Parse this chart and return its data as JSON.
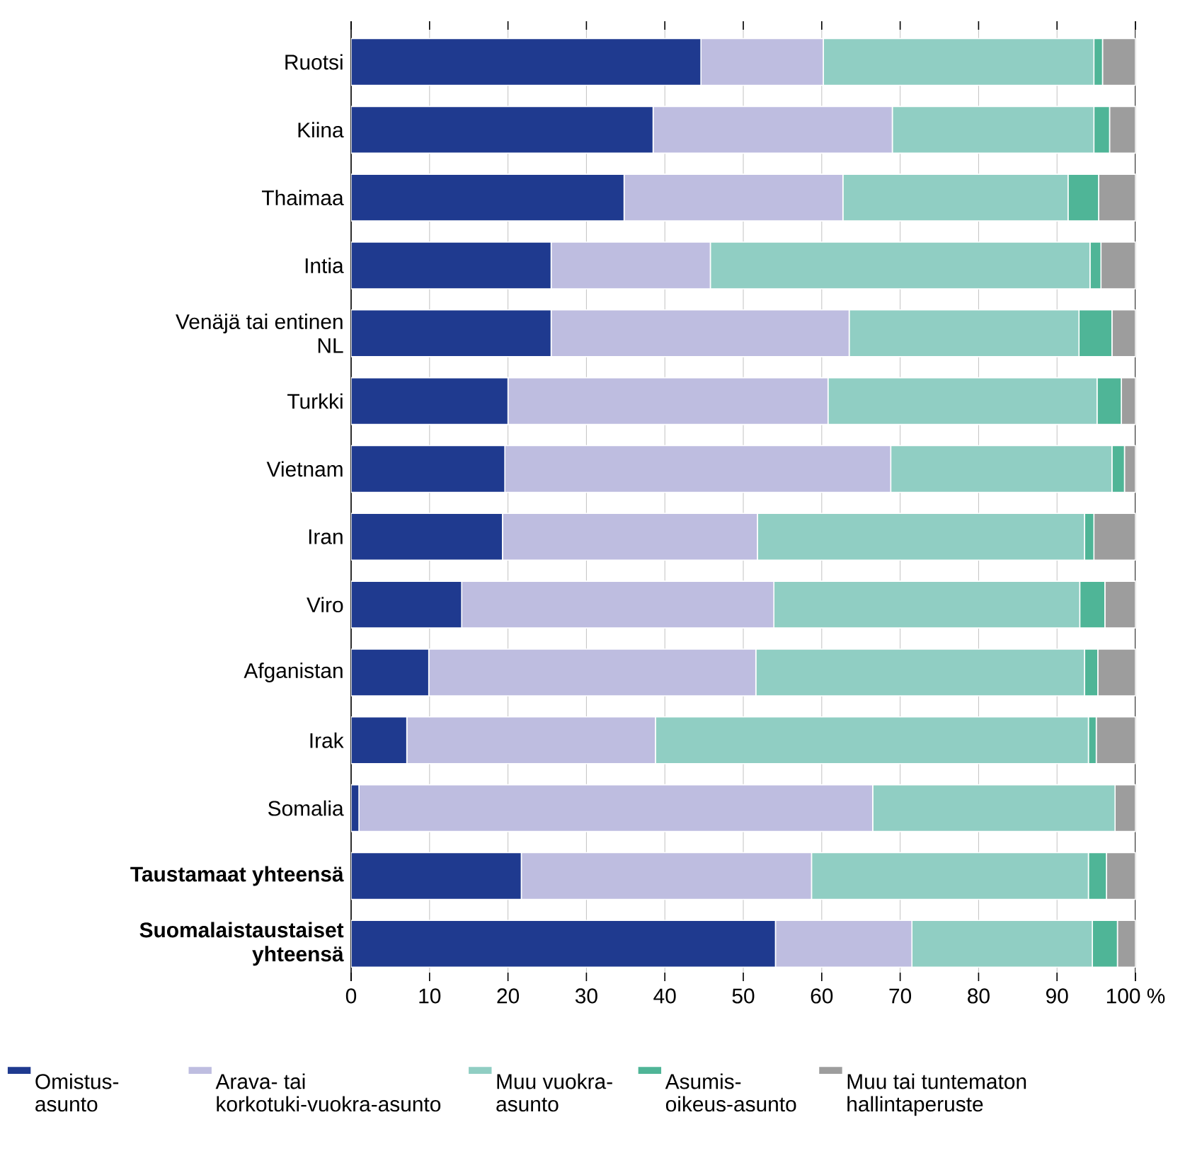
{
  "chart_data": {
    "type": "bar",
    "orientation": "horizontal",
    "stacked": true,
    "categories": [
      "Ruotsi",
      "Kiina",
      "Thaimaa",
      "Intia",
      "Venäjä tai entinen NL",
      "Turkki",
      "Vietnam",
      "Iran",
      "Viro",
      "Afganistan",
      "Irak",
      "Somalia",
      "Taustamaat yhteensä",
      "Suomalaistaustaiset yhteensä"
    ],
    "series": [
      {
        "name": "Omistus-asunto",
        "color": "#1f3a8f",
        "values": [
          44.6,
          38.5,
          34.8,
          25.5,
          25.5,
          20.0,
          19.6,
          19.3,
          14.1,
          9.9,
          7.1,
          1.0,
          21.7,
          54.1
        ]
      },
      {
        "name": "Arava- tai korkotuki-vuokra-asunto",
        "color": "#bebde0",
        "values": [
          15.6,
          30.5,
          27.9,
          20.3,
          38.0,
          40.8,
          49.2,
          32.5,
          39.8,
          41.7,
          31.7,
          65.5,
          37.0,
          17.4
        ]
      },
      {
        "name": "Muu vuokra-asunto",
        "color": "#90cec3",
        "values": [
          34.5,
          25.7,
          28.7,
          48.4,
          29.3,
          34.3,
          28.2,
          41.7,
          39.0,
          41.9,
          55.2,
          30.9,
          35.3,
          23.0
        ]
      },
      {
        "name": "Asumis-oikeus-asunto",
        "color": "#4fb597",
        "values": [
          1.1,
          2.0,
          3.9,
          1.4,
          4.2,
          3.1,
          1.6,
          1.2,
          3.2,
          1.7,
          1.0,
          0,
          2.3,
          3.2
        ]
      },
      {
        "name": "Muu tai tuntematon hallintaperuste",
        "color": "#9d9d9d",
        "values": [
          4.2,
          3.3,
          4.7,
          4.4,
          3.0,
          1.8,
          1.4,
          5.3,
          3.9,
          4.8,
          5.0,
          2.6,
          3.7,
          2.3
        ]
      }
    ],
    "xlim": [
      0,
      100
    ],
    "xticks": [
      0,
      10,
      20,
      30,
      40,
      50,
      60,
      70,
      80,
      90,
      {
        "value": 100,
        "label": "100 %"
      }
    ],
    "grid": "x",
    "legend": "bottom"
  }
}
